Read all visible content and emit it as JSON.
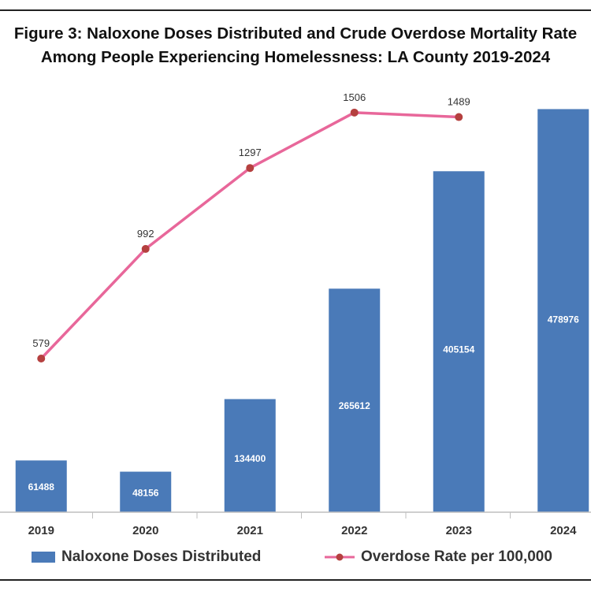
{
  "chart_data": {
    "type": "bar",
    "title_line1": "Figure 3: Naloxone Doses Distributed and Crude Overdose Mortality Rate",
    "title_line2": "Among People Experiencing Homelessness: LA County 2019-2024",
    "categories": [
      "2019",
      "2020",
      "2021",
      "2022",
      "2023",
      "2024"
    ],
    "series": [
      {
        "name": "Naloxone Doses Distributed",
        "type": "bar",
        "values": [
          61488,
          48156,
          134400,
          265612,
          405154,
          478976
        ],
        "value_labels": [
          "61488",
          "48156",
          "134400",
          "265612",
          "405154",
          "478976"
        ],
        "color": "#4a7ab8"
      },
      {
        "name": "Overdose Rate per 100,000",
        "type": "line",
        "values": [
          579,
          992,
          1297,
          1506,
          1489,
          null
        ],
        "value_labels": [
          "579",
          "992",
          "1297",
          "1506",
          "1489",
          ""
        ],
        "color": "#e8679a",
        "marker_color": "#b5403f"
      }
    ],
    "legend": "bottom",
    "grid": false,
    "bar_ylim": [
      0,
      500000
    ],
    "line_ylim": [
      0,
      1550
    ]
  }
}
